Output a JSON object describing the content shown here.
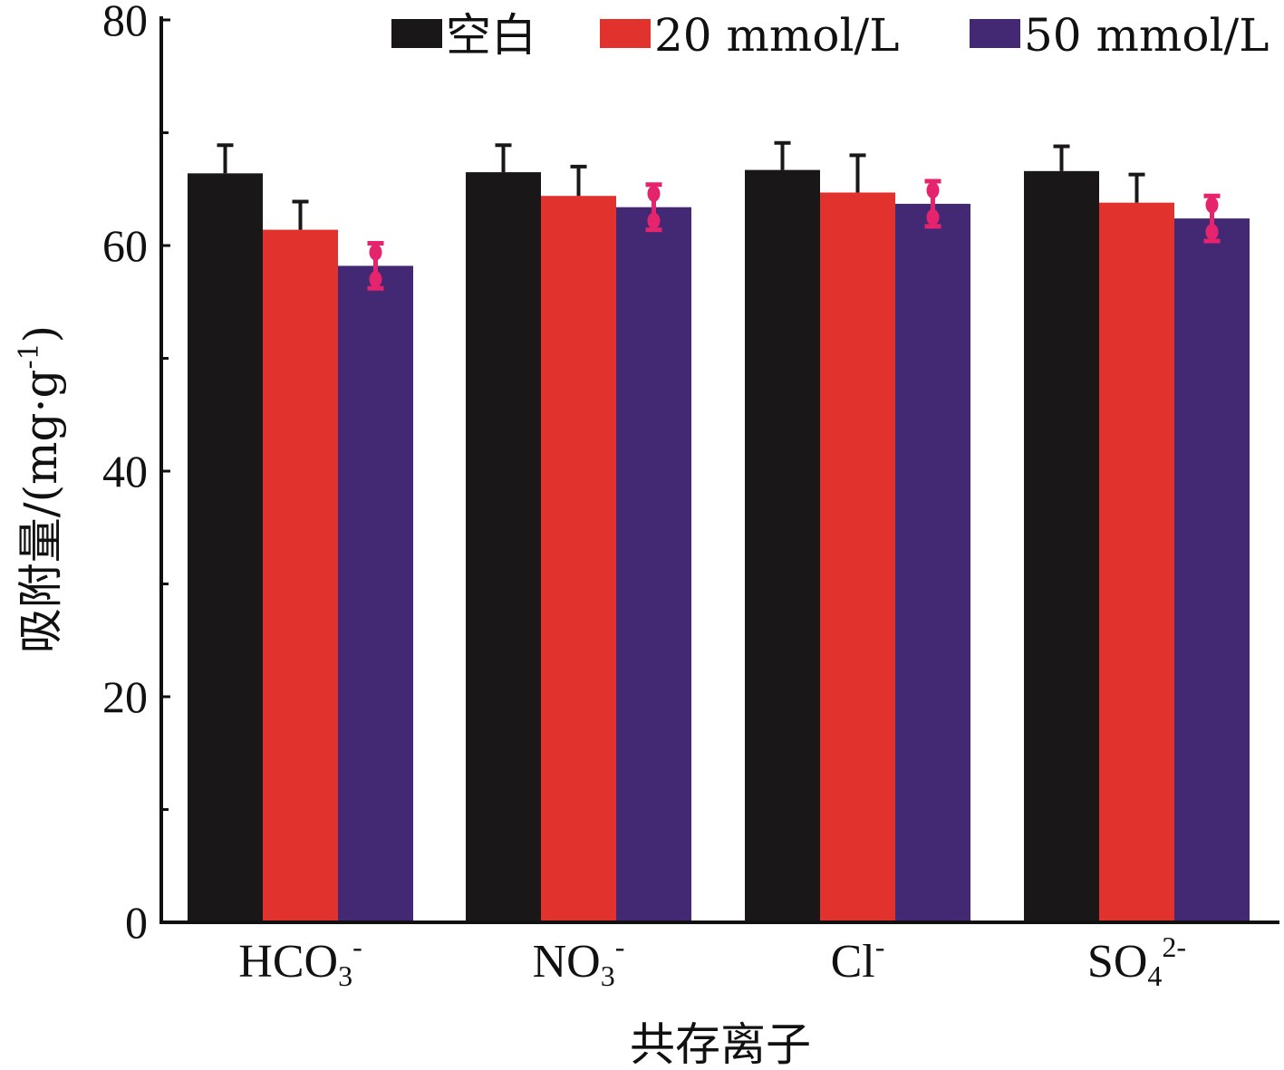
{
  "chart_data": {
    "type": "bar",
    "xlabel": "共存离子",
    "ylabel": "吸附量/(mg·g-1)",
    "ylim": [
      0,
      80
    ],
    "yticks": [
      0,
      20,
      40,
      60,
      80
    ],
    "categories": [
      {
        "base": "HCO",
        "sub": "3",
        "sup": "-"
      },
      {
        "base": "NO",
        "sub": "3",
        "sup": "-"
      },
      {
        "base": "Cl",
        "sub": "",
        "sup": "-"
      },
      {
        "base": "SO",
        "sub": "4",
        "sup": "2-"
      }
    ],
    "series": [
      {
        "name": "空白",
        "color": "#1a1718",
        "error_color": "#1a1718",
        "values": [
          66.4,
          66.5,
          66.7,
          66.6
        ],
        "errors": [
          2.5,
          2.4,
          2.4,
          2.2
        ]
      },
      {
        "name": "20 mmol/L",
        "color": "#e2322d",
        "error_color": "#1a1718",
        "values": [
          61.4,
          64.4,
          64.7,
          63.8
        ],
        "errors": [
          2.5,
          2.6,
          3.3,
          2.5
        ]
      },
      {
        "name": "50 mmol/L",
        "color": "#432873",
        "error_color": "#e6246e",
        "values": [
          58.2,
          63.4,
          63.7,
          62.4
        ],
        "errors": [
          2.0,
          2.0,
          2.0,
          2.0
        ]
      }
    ],
    "legend_position": "top-right",
    "grid": false
  }
}
